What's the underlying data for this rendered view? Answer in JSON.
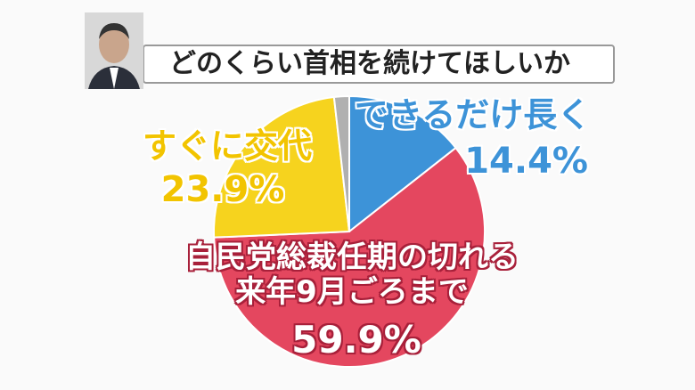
{
  "chart_data": {
    "type": "pie",
    "title": "どのくらい首相を続けてほしいか",
    "categories": [
      "できるだけ長く",
      "自民党総裁任期の切れる\n来年9月ごろまで",
      "すぐに交代",
      null
    ],
    "values": [
      14.4,
      59.9,
      23.9,
      1.8
    ],
    "value_labels": [
      "14.4%",
      "59.9%",
      "23.9%",
      null
    ],
    "colors": [
      "#3d93d8",
      "#e4475f",
      "#f6d31e",
      "#b0b0b0"
    ]
  }
}
